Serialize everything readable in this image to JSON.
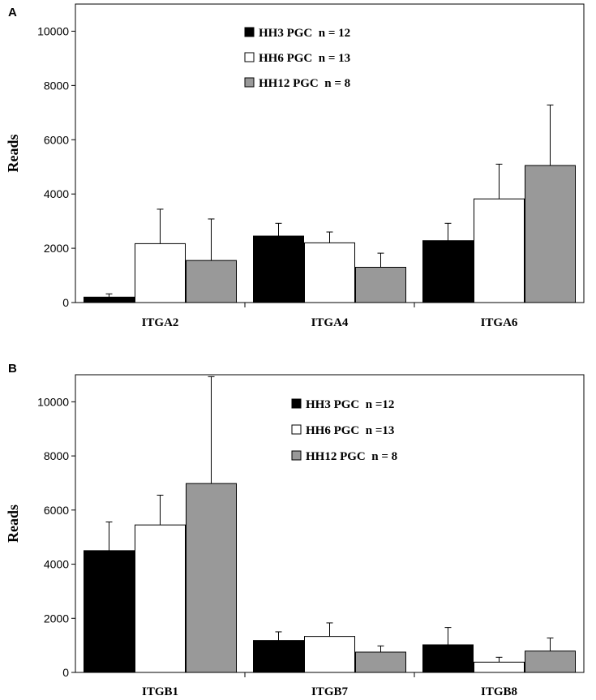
{
  "chart_data": [
    {
      "panel": "A",
      "type": "bar",
      "ylabel": "Reads",
      "ylim": [
        0,
        11000
      ],
      "yticks": [
        0,
        2000,
        4000,
        6000,
        8000,
        10000
      ],
      "categories": [
        "ITGA2",
        "ITGA4",
        "ITGA6"
      ],
      "series": [
        {
          "name": "HH3 PGC  n = 12",
          "color": "#000000",
          "values": [
            200,
            2450,
            2280
          ],
          "errors": [
            120,
            470,
            640
          ]
        },
        {
          "name": "HH6 PGC  n = 13",
          "color": "#ffffff",
          "values": [
            2170,
            2200,
            3820
          ],
          "errors": [
            1270,
            400,
            1280
          ]
        },
        {
          "name": "HH12 PGC  n = 8",
          "color": "#999999",
          "values": [
            1550,
            1300,
            5050
          ],
          "errors": [
            1530,
            520,
            2230
          ]
        }
      ],
      "legend_position": "top-center"
    },
    {
      "panel": "B",
      "type": "bar",
      "ylabel": "Reads",
      "ylim": [
        0,
        11000
      ],
      "yticks": [
        0,
        2000,
        4000,
        6000,
        8000,
        10000
      ],
      "categories": [
        "ITGB1",
        "ITGB7",
        "ITGB8"
      ],
      "series": [
        {
          "name": "HH3 PGC  n =12",
          "color": "#000000",
          "values": [
            4500,
            1180,
            1020
          ],
          "errors": [
            1060,
            320,
            640
          ]
        },
        {
          "name": "HH6 PGC  n =13",
          "color": "#ffffff",
          "values": [
            5450,
            1330,
            380
          ],
          "errors": [
            1100,
            500,
            180
          ]
        },
        {
          "name": "HH12 PGC  n = 8",
          "color": "#999999",
          "values": [
            6980,
            750,
            790
          ],
          "errors": [
            3950,
            230,
            480
          ]
        }
      ],
      "legend_position": "top-right"
    }
  ]
}
